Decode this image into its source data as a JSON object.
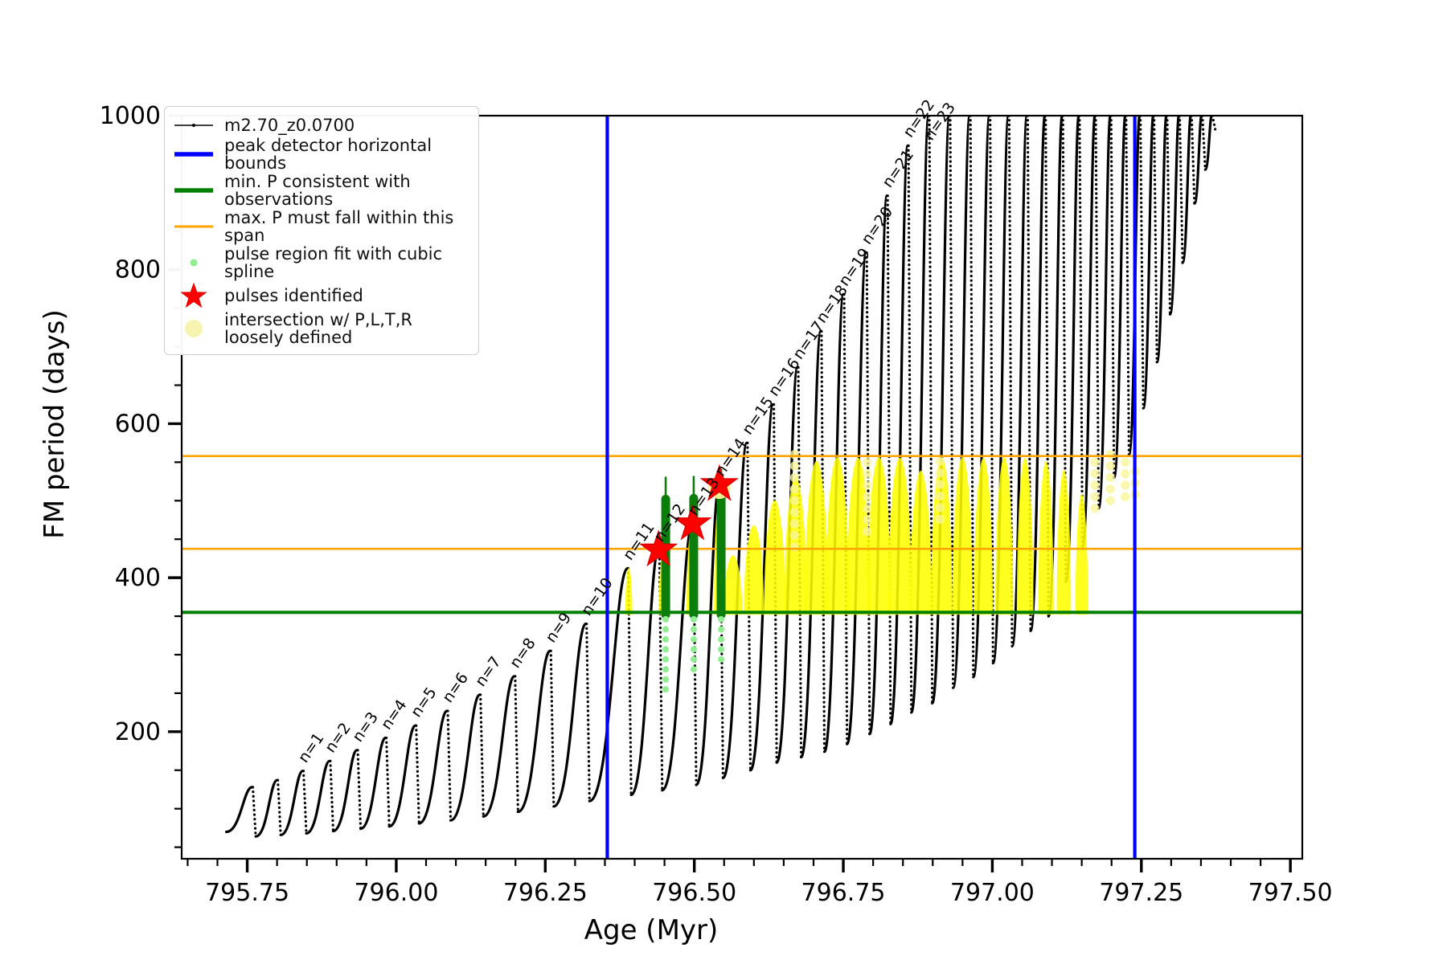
{
  "legend": {
    "items": [
      {
        "label": "m2.70_z0.0700",
        "symbol": "line-with-dot-marker",
        "color": "#000000"
      },
      {
        "label": "peak detector horizontal bounds",
        "symbol": "thick-line",
        "color": "#0000ff"
      },
      {
        "label": "min. P consistent with observations",
        "symbol": "thick-line",
        "color": "#008000"
      },
      {
        "label": "max. P must fall within this span",
        "symbol": "line",
        "color": "#ffa500"
      },
      {
        "label": "pulse region fit with cubic spline",
        "symbol": "small-dot",
        "color": "#90ee90"
      },
      {
        "label": "pulses identified",
        "symbol": "star",
        "color": "#ff0000"
      },
      {
        "label": "intersection w/ P,L,T,R\nloosely defined",
        "symbol": "large-dot",
        "color": "#f7f3b0"
      }
    ]
  },
  "chart_data": {
    "type": "line",
    "title": "",
    "xlabel": "Age (Myr)",
    "ylabel": "FM period (days)",
    "xlim": [
      795.64,
      797.52
    ],
    "ylim": [
      35,
      1000
    ],
    "grid": false,
    "x_ticks_major": [
      795.75,
      796.0,
      796.25,
      796.5,
      796.75,
      797.0,
      797.25,
      797.5
    ],
    "x_tick_labels": [
      "795.75",
      "796.00",
      "796.25",
      "796.50",
      "796.75",
      "797.00",
      "797.25",
      "797.50"
    ],
    "x_minor_step": 0.05,
    "y_ticks_major": [
      200,
      400,
      600,
      800,
      1000
    ],
    "y_tick_labels": [
      "200",
      "400",
      "600",
      "800",
      "1000"
    ],
    "y_minor_step": 50,
    "series_label": "m2.70_z0.0700",
    "peak_detector_bounds_ages": [
      796.354,
      797.239
    ],
    "min_P_line": 355,
    "max_P_span": [
      437.5,
      558
    ],
    "pulse_cycles_start": {
      "age": 795.715,
      "P": 70
    },
    "cycles_format": "[peak_age_Myr, peak_P_days, valley_after_P_days, label]",
    "cycles": [
      [
        795.758,
        128,
        64,
        ""
      ],
      [
        795.8,
        137,
        66,
        ""
      ],
      [
        795.843,
        149,
        68,
        "n=1"
      ],
      [
        795.888,
        162,
        71,
        "n=2"
      ],
      [
        795.934,
        176,
        74,
        "n=3"
      ],
      [
        795.982,
        192,
        77,
        "n=4"
      ],
      [
        796.032,
        208,
        81,
        "n=5"
      ],
      [
        796.085,
        227,
        85,
        "n=6"
      ],
      [
        796.14,
        248,
        90,
        "n=7"
      ],
      [
        796.198,
        272,
        96,
        "n=8"
      ],
      [
        796.258,
        305,
        103,
        "n=9"
      ],
      [
        796.318,
        340,
        110,
        "n=10"
      ],
      [
        796.388,
        412,
        118,
        "n=11"
      ],
      [
        796.44,
        436,
        124,
        "n=12"
      ],
      [
        796.497,
        470,
        131,
        "n=13"
      ],
      [
        796.542,
        521,
        140,
        "n=14"
      ],
      [
        796.588,
        575,
        150,
        "n=15"
      ],
      [
        796.632,
        625,
        160,
        "n=16"
      ],
      [
        796.673,
        673,
        167,
        "n=17"
      ],
      [
        796.712,
        720,
        174,
        "n=18"
      ],
      [
        796.75,
        768,
        184,
        "n=19"
      ],
      [
        796.788,
        822,
        197,
        "n=20"
      ],
      [
        796.823,
        896,
        210,
        "n=21"
      ],
      [
        796.858,
        961,
        225,
        "n=22"
      ],
      [
        796.893,
        1007,
        237,
        "n=23"
      ],
      [
        796.928,
        1060,
        257,
        ""
      ],
      [
        796.962,
        1120,
        271,
        ""
      ],
      [
        796.995,
        1180,
        289,
        ""
      ],
      [
        797.027,
        1240,
        311,
        ""
      ],
      [
        797.058,
        1300,
        331,
        ""
      ],
      [
        797.088,
        1360,
        350,
        ""
      ],
      [
        797.117,
        1420,
        395,
        ""
      ],
      [
        797.145,
        1480,
        440,
        ""
      ],
      [
        797.172,
        1540,
        490,
        ""
      ],
      [
        797.198,
        1600,
        530,
        ""
      ],
      [
        797.223,
        1660,
        560,
        ""
      ],
      [
        797.247,
        1720,
        620,
        ""
      ],
      [
        797.27,
        1780,
        680,
        ""
      ],
      [
        797.292,
        1840,
        742,
        ""
      ],
      [
        797.313,
        1900,
        809,
        ""
      ],
      [
        797.333,
        1960,
        886,
        ""
      ],
      [
        797.351,
        2020,
        930,
        ""
      ],
      [
        797.368,
        2080,
        981,
        ""
      ]
    ],
    "stars": [
      {
        "age": 796.44,
        "P": 436,
        "halo": false
      },
      {
        "age": 796.497,
        "P": 470,
        "halo": false
      },
      {
        "age": 796.542,
        "P": 521,
        "halo": true
      }
    ],
    "spline_bars": [
      {
        "age": 796.452,
        "P_low": 352,
        "P_high": 502,
        "whisker_high": 530,
        "dots_low": 255
      },
      {
        "age": 796.499,
        "P_low": 352,
        "P_high": 503,
        "whisker_high": 531,
        "dots_low": 271
      },
      {
        "age": 796.545,
        "P_low": 352,
        "P_high": 518,
        "whisker_high": 540,
        "dots_low": 292
      }
    ],
    "yellow_base_P": 352,
    "yellow_humps_format": "[center_age, half_width_Myr, top_P]",
    "yellow_humps": [
      [
        796.39,
        0.006,
        412
      ],
      [
        796.448,
        0.008,
        430
      ],
      [
        796.495,
        0.008,
        462
      ],
      [
        796.541,
        0.008,
        500
      ],
      [
        796.565,
        0.016,
        437
      ],
      [
        796.6,
        0.017,
        468
      ],
      [
        796.635,
        0.018,
        500
      ],
      [
        796.67,
        0.019,
        530
      ],
      [
        796.705,
        0.02,
        552
      ],
      [
        796.74,
        0.02,
        556
      ],
      [
        796.775,
        0.02,
        556
      ],
      [
        796.81,
        0.02,
        556
      ],
      [
        796.845,
        0.02,
        556
      ],
      [
        796.88,
        0.019,
        556
      ],
      [
        796.915,
        0.018,
        556
      ],
      [
        796.95,
        0.017,
        556
      ],
      [
        796.985,
        0.016,
        556
      ],
      [
        797.02,
        0.015,
        556
      ],
      [
        797.055,
        0.014,
        556
      ],
      [
        797.09,
        0.013,
        550
      ],
      [
        797.12,
        0.012,
        540
      ],
      [
        797.15,
        0.011,
        528
      ]
    ],
    "yellow_dot_columns": [
      {
        "age": 796.668,
        "lo": 440,
        "hi": 560
      },
      {
        "age": 796.79,
        "lo": 460,
        "hi": 562
      },
      {
        "age": 796.912,
        "lo": 476,
        "hi": 562
      },
      {
        "age": 797.172,
        "lo": 490,
        "hi": 560
      },
      {
        "age": 797.198,
        "lo": 500,
        "hi": 560
      },
      {
        "age": 797.223,
        "lo": 505,
        "hi": 558
      },
      {
        "age": 797.24,
        "lo": 508,
        "hi": 548
      }
    ],
    "colors": {
      "series": "#000000",
      "bounds": "#0000ff",
      "min_line": "#008000",
      "span_line": "#ffa500",
      "spline_fit_dot": "#90ee90",
      "spline_bar": "#0b7d0b",
      "pulse_star": "#ff0000",
      "intersection": "#ffff00",
      "intersection_pale": "#f9f59a"
    }
  }
}
